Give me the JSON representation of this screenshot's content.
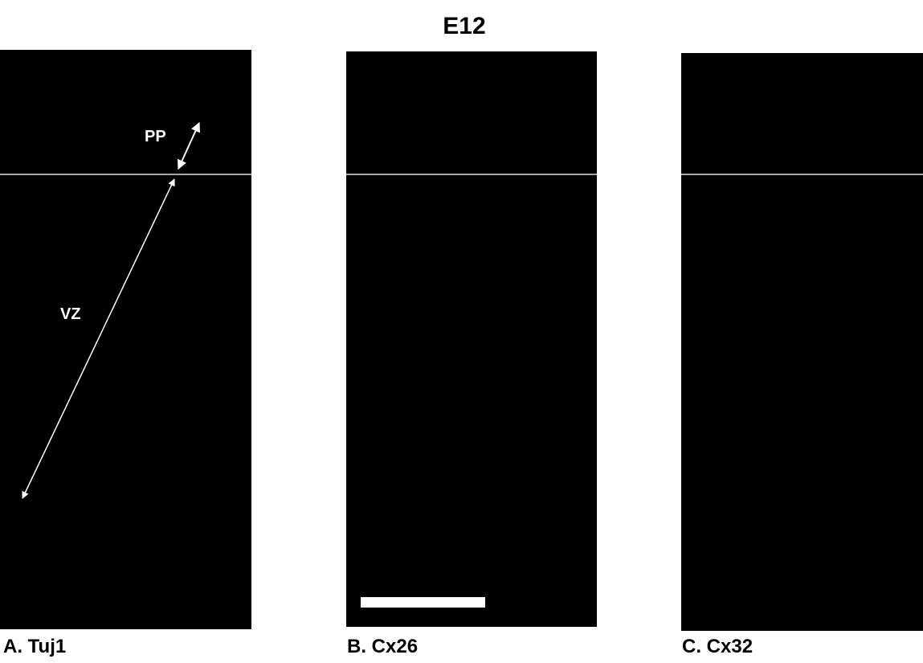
{
  "title": "E12",
  "panels": [
    {
      "label": "A. Tuj1",
      "annotations": [
        "PP",
        "VZ"
      ]
    },
    {
      "label": "B. Cx26"
    },
    {
      "label": "C. Cx32"
    }
  ]
}
